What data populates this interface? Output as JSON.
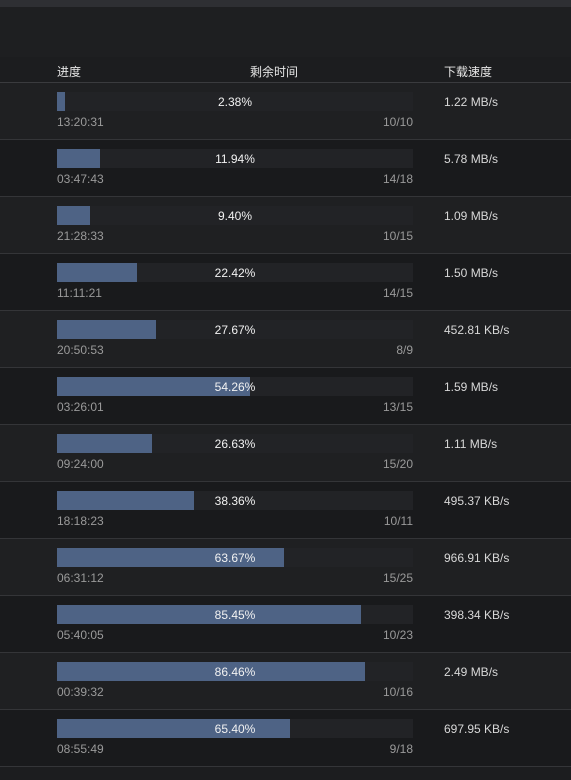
{
  "header": {
    "progress": "进度",
    "remaining_time": "剩余时间",
    "download_speed": "下载速度"
  },
  "colors": {
    "bar_fill": "#4e6385",
    "bar_track": "#222326"
  },
  "rows": [
    {
      "percent_label": "2.38%",
      "progress": 0.0238,
      "time": "13:20:31",
      "count": "10/10",
      "speed": "1.22 MB/s"
    },
    {
      "percent_label": "11.94%",
      "progress": 0.1194,
      "time": "03:47:43",
      "count": "14/18",
      "speed": "5.78 MB/s"
    },
    {
      "percent_label": "9.40%",
      "progress": 0.094,
      "time": "21:28:33",
      "count": "10/15",
      "speed": "1.09 MB/s"
    },
    {
      "percent_label": "22.42%",
      "progress": 0.2242,
      "time": "11:11:21",
      "count": "14/15",
      "speed": "1.50 MB/s"
    },
    {
      "percent_label": "27.67%",
      "progress": 0.2767,
      "time": "20:50:53",
      "count": "8/9",
      "speed": "452.81 KB/s"
    },
    {
      "percent_label": "54.26%",
      "progress": 0.5426,
      "time": "03:26:01",
      "count": "13/15",
      "speed": "1.59 MB/s"
    },
    {
      "percent_label": "26.63%",
      "progress": 0.2663,
      "time": "09:24:00",
      "count": "15/20",
      "speed": "1.11 MB/s"
    },
    {
      "percent_label": "38.36%",
      "progress": 0.3836,
      "time": "18:18:23",
      "count": "10/11",
      "speed": "495.37 KB/s"
    },
    {
      "percent_label": "63.67%",
      "progress": 0.6367,
      "time": "06:31:12",
      "count": "15/25",
      "speed": "966.91 KB/s"
    },
    {
      "percent_label": "85.45%",
      "progress": 0.8545,
      "time": "05:40:05",
      "count": "10/23",
      "speed": "398.34 KB/s"
    },
    {
      "percent_label": "86.46%",
      "progress": 0.8646,
      "time": "00:39:32",
      "count": "10/16",
      "speed": "2.49 MB/s"
    },
    {
      "percent_label": "65.40%",
      "progress": 0.654,
      "time": "08:55:49",
      "count": "9/18",
      "speed": "697.95 KB/s"
    }
  ]
}
